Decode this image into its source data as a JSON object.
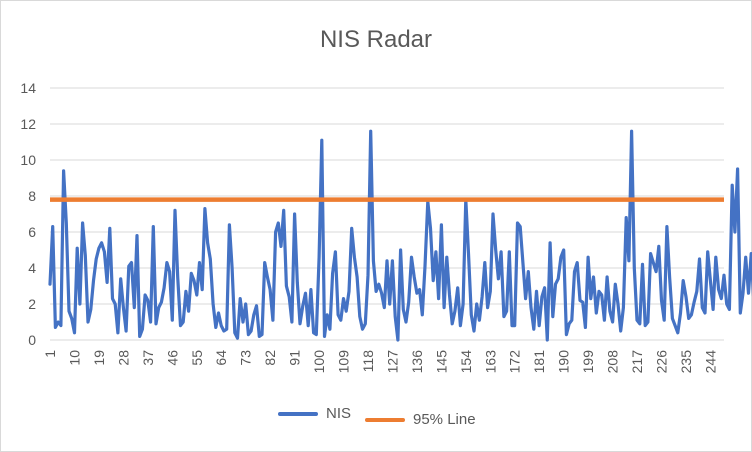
{
  "chart_data": {
    "type": "line",
    "title": "NIS Radar",
    "xlabel": "",
    "ylabel": "",
    "ylim": [
      0,
      14
    ],
    "yticks": [
      0,
      2,
      4,
      6,
      8,
      10,
      12,
      14
    ],
    "x_range": [
      1,
      249
    ],
    "x_tick_labels": [
      "1",
      "10",
      "19",
      "28",
      "37",
      "46",
      "55",
      "64",
      "73",
      "82",
      "91",
      "100",
      "109",
      "118",
      "127",
      "136",
      "145",
      "154",
      "163",
      "172",
      "181",
      "190",
      "199",
      "208",
      "217",
      "226",
      "235",
      "244"
    ],
    "grid": "horizontal",
    "legend": "bottom",
    "series": [
      {
        "name": "NIS",
        "color": "#4472c4",
        "values": [
          3.1,
          6.3,
          0.7,
          1.0,
          0.8,
          9.4,
          6.5,
          1.6,
          1.2,
          0.4,
          5.1,
          2.0,
          6.5,
          4.7,
          1.0,
          1.7,
          3.3,
          4.5,
          5.1,
          5.4,
          4.9,
          3.2,
          6.2,
          2.3,
          2.0,
          0.4,
          3.4,
          1.8,
          0.5,
          4.1,
          4.3,
          1.8,
          5.8,
          0.2,
          0.6,
          2.5,
          2.2,
          1.0,
          6.3,
          0.9,
          1.8,
          2.1,
          2.9,
          4.3,
          3.8,
          1.1,
          7.2,
          3.5,
          0.8,
          1.0,
          2.7,
          1.6,
          3.7,
          3.3,
          2.5,
          4.3,
          2.8,
          7.3,
          5.4,
          4.5,
          2.0,
          0.7,
          1.5,
          0.8,
          0.5,
          0.6,
          6.4,
          4.0,
          0.4,
          0.1,
          2.3,
          1.0,
          2.0,
          0.3,
          0.5,
          1.4,
          1.9,
          0.2,
          0.3,
          4.3,
          3.5,
          2.8,
          1.1,
          6.0,
          6.5,
          5.2,
          7.2,
          3.0,
          2.4,
          1.0,
          7.0,
          3.2,
          0.9,
          1.9,
          2.6,
          0.8,
          2.8,
          0.4,
          0.3,
          4.6,
          11.1,
          0.2,
          1.4,
          0.6,
          3.7,
          4.9,
          1.4,
          1.1,
          2.3,
          1.6,
          2.7,
          6.2,
          4.6,
          3.5,
          1.3,
          0.6,
          0.9,
          3.6,
          11.6,
          4.4,
          2.7,
          3.1,
          2.6,
          1.8,
          4.4,
          2.0,
          4.4,
          1.3,
          0.0,
          5.0,
          1.7,
          1.0,
          2.1,
          4.6,
          3.5,
          2.6,
          2.8,
          1.4,
          4.1,
          7.7,
          6.2,
          3.3,
          4.9,
          2.3,
          6.4,
          1.8,
          4.6,
          2.5,
          0.9,
          1.6,
          2.9,
          0.8,
          2.0,
          7.8,
          4.8,
          1.4,
          0.5,
          2.0,
          1.1,
          2.4,
          4.3,
          1.8,
          2.7,
          7.0,
          5.0,
          3.4,
          4.9,
          1.3,
          1.6,
          4.9,
          0.8,
          0.8,
          6.5,
          6.3,
          4.3,
          2.3,
          3.8,
          1.8,
          0.6,
          2.7,
          0.8,
          2.4,
          2.9,
          0.0,
          5.4,
          1.3,
          3.1,
          3.4,
          4.6,
          5.0,
          0.3,
          0.9,
          1.1,
          3.8,
          4.3,
          2.2,
          2.1,
          0.7,
          4.6,
          2.3,
          3.5,
          1.5,
          2.7,
          2.5,
          1.1,
          3.5,
          1.6,
          1.0,
          3.1,
          2.0,
          0.5,
          1.8,
          6.8,
          4.4,
          11.6,
          4.0,
          1.1,
          0.9,
          4.2,
          0.8,
          1.0,
          4.8,
          4.3,
          3.8,
          5.2,
          2.2,
          1.1,
          6.3,
          3.5,
          1.2,
          0.8,
          0.4,
          1.5,
          3.3,
          2.4,
          1.2,
          1.4,
          2.1,
          2.7,
          4.5,
          1.8,
          1.5,
          4.9,
          3.3,
          1.7,
          4.6,
          2.8,
          2.3,
          3.6,
          2.0,
          1.7,
          8.6,
          6.0,
          9.5,
          1.5,
          2.6,
          4.6,
          2.6,
          4.8,
          2.1
        ]
      },
      {
        "name": "95% Line",
        "color": "#ed7d31",
        "values": [
          7.8,
          7.8
        ]
      }
    ]
  }
}
